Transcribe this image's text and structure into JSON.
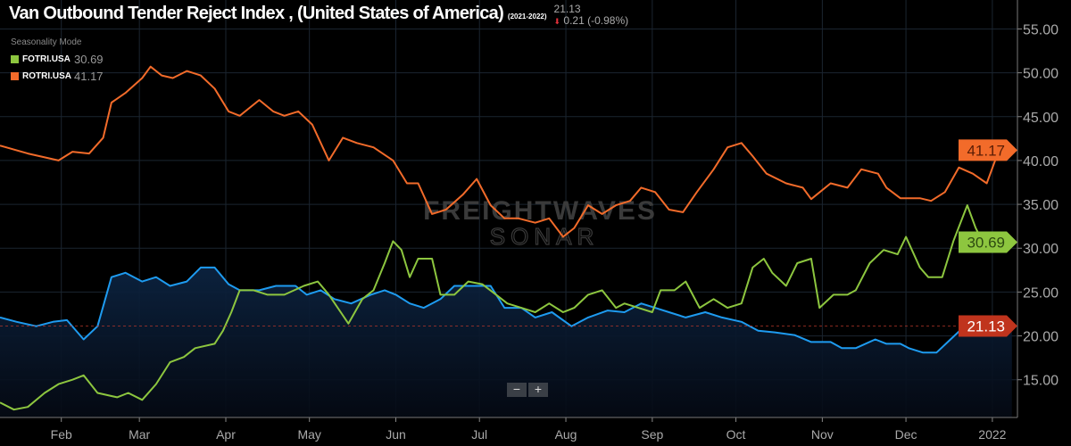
{
  "header": {
    "title": "Van Outbound Tender Reject Index , (United States of America)",
    "range": "(2021-2022)",
    "last_value": "21.13",
    "change": "0.21",
    "change_pct": "(-0.98%)"
  },
  "legend": {
    "mode": "Seasonality Mode",
    "items": [
      {
        "name": "FOTRI.USA",
        "value": "30.69",
        "color": "#8dc63f"
      },
      {
        "name": "ROTRI.USA",
        "value": "41.17",
        "color": "#f26b2a"
      }
    ]
  },
  "watermark": {
    "line1": "FREIGHTWAVES",
    "line2": "SONAR"
  },
  "zoom_controls": {
    "minus": "−",
    "plus": "+"
  },
  "chart_data": {
    "type": "line",
    "title": "Van Outbound Tender Reject Index , (United States of America)",
    "xlabel": "",
    "ylabel": "",
    "ylim": [
      10.7,
      58.3
    ],
    "xlim_day_of_year": [
      10,
      375
    ],
    "grid": true,
    "y_ticks": [
      "15.00",
      "20.00",
      "25.00",
      "30.00",
      "35.00",
      "40.00",
      "45.00",
      "50.00",
      "55.00"
    ],
    "x_ticks": [
      {
        "label": "Feb",
        "day": 32
      },
      {
        "label": "Mar",
        "day": 60
      },
      {
        "label": "Apr",
        "day": 91
      },
      {
        "label": "May",
        "day": 121
      },
      {
        "label": "Jun",
        "day": 152
      },
      {
        "label": "Jul",
        "day": 182
      },
      {
        "label": "Aug",
        "day": 213
      },
      {
        "label": "Sep",
        "day": 244
      },
      {
        "label": "Oct",
        "day": 274
      },
      {
        "label": "Nov",
        "day": 305
      },
      {
        "label": "Dec",
        "day": 335
      },
      {
        "label": "2022",
        "day": 366
      }
    ],
    "series": [
      {
        "name": "ROTRI.USA",
        "color": "#f26b2a",
        "last": "41.17",
        "x": [
          10,
          20,
          31,
          36,
          42,
          47,
          50,
          55,
          61,
          64,
          68,
          72,
          77,
          82,
          87,
          92,
          96,
          103,
          108,
          112,
          117,
          122,
          128,
          133,
          138,
          144,
          151,
          156,
          160,
          165,
          170,
          176,
          181,
          186,
          191,
          196,
          202,
          207,
          212,
          216,
          221,
          226,
          231,
          236,
          240,
          245,
          250,
          255,
          260,
          266,
          271,
          276,
          280,
          285,
          292,
          298,
          301,
          308,
          314,
          319,
          325,
          328,
          333,
          340,
          344,
          349,
          354,
          359,
          364,
          367,
          370,
          373
        ],
        "y": [
          41.7,
          40.8,
          40.0,
          41.0,
          40.8,
          42.6,
          46.6,
          47.7,
          49.4,
          50.7,
          49.7,
          49.4,
          50.2,
          49.7,
          48.2,
          45.6,
          45.1,
          46.9,
          45.6,
          45.1,
          45.6,
          44.1,
          40.0,
          42.6,
          42.0,
          41.5,
          40.0,
          37.4,
          37.4,
          33.9,
          34.4,
          36.1,
          37.9,
          34.9,
          33.4,
          33.4,
          32.9,
          33.4,
          31.3,
          32.3,
          34.9,
          33.9,
          34.9,
          35.4,
          36.9,
          36.4,
          34.4,
          34.1,
          36.4,
          39.0,
          41.5,
          42.0,
          40.5,
          38.5,
          37.4,
          36.9,
          35.6,
          37.4,
          36.9,
          39.0,
          38.5,
          36.9,
          35.7,
          35.7,
          35.4,
          36.4,
          39.2,
          38.5,
          37.4,
          40.0,
          41.5,
          41.17
        ]
      },
      {
        "name": "FOTRI.USA",
        "color": "#8dc63f",
        "last": "30.69",
        "x": [
          10,
          15,
          20,
          26,
          31,
          36,
          40,
          45,
          52,
          56,
          61,
          66,
          71,
          76,
          80,
          87,
          90,
          93,
          96,
          101,
          106,
          112,
          119,
          124,
          128,
          135,
          140,
          144,
          148,
          151,
          154,
          157,
          160,
          165,
          168,
          173,
          178,
          183,
          188,
          192,
          197,
          202,
          207,
          212,
          216,
          221,
          226,
          231,
          234,
          239,
          244,
          247,
          252,
          256,
          261,
          266,
          271,
          276,
          280,
          284,
          287,
          292,
          296,
          301,
          304,
          309,
          314,
          317,
          322,
          327,
          332,
          335,
          340,
          343,
          348,
          352,
          357,
          360,
          364,
          367,
          370,
          373
        ],
        "y": [
          12.4,
          11.6,
          11.9,
          13.5,
          14.5,
          15.0,
          15.5,
          13.5,
          13.0,
          13.5,
          12.7,
          14.5,
          17.0,
          17.6,
          18.6,
          19.1,
          20.6,
          22.7,
          25.2,
          25.2,
          24.7,
          24.7,
          25.7,
          26.2,
          24.7,
          21.4,
          24.2,
          25.2,
          28.3,
          30.8,
          29.8,
          26.7,
          28.8,
          28.8,
          24.7,
          24.7,
          26.2,
          25.9,
          24.7,
          23.7,
          23.2,
          22.7,
          23.7,
          22.7,
          23.2,
          24.7,
          25.2,
          23.2,
          23.7,
          23.2,
          22.7,
          25.2,
          25.2,
          26.2,
          23.2,
          24.2,
          23.2,
          23.7,
          27.8,
          28.8,
          27.2,
          25.7,
          28.3,
          28.8,
          23.2,
          24.7,
          24.7,
          25.2,
          28.3,
          29.8,
          29.3,
          31.3,
          27.8,
          26.7,
          26.7,
          30.8,
          34.9,
          32.3,
          29.8,
          30.8,
          30.8,
          30.69
        ]
      },
      {
        "name": "Van Outbound Tender Reject Index",
        "color": "#1e9bf0",
        "last": "21.13",
        "area": true,
        "x": [
          10,
          16,
          23,
          29,
          34,
          40,
          45,
          50,
          55,
          61,
          66,
          71,
          77,
          82,
          87,
          92,
          96,
          103,
          109,
          116,
          120,
          125,
          130,
          136,
          143,
          148,
          152,
          157,
          162,
          168,
          173,
          180,
          186,
          191,
          197,
          202,
          208,
          215,
          221,
          228,
          234,
          240,
          245,
          250,
          256,
          263,
          269,
          276,
          282,
          288,
          295,
          301,
          308,
          312,
          317,
          324,
          328,
          333,
          336,
          341,
          346,
          351,
          356,
          360,
          365,
          370,
          373
        ],
        "y": [
          22.1,
          21.6,
          21.1,
          21.6,
          21.8,
          19.6,
          21.1,
          26.7,
          27.2,
          26.2,
          26.7,
          25.7,
          26.2,
          27.8,
          27.8,
          25.9,
          25.2,
          25.2,
          25.7,
          25.7,
          24.7,
          25.2,
          24.2,
          23.7,
          24.7,
          25.2,
          24.7,
          23.7,
          23.2,
          24.2,
          25.7,
          25.7,
          25.7,
          23.2,
          23.2,
          22.1,
          22.7,
          21.1,
          22.1,
          22.9,
          22.7,
          23.7,
          23.2,
          22.7,
          22.1,
          22.7,
          22.1,
          21.6,
          20.6,
          20.4,
          20.1,
          19.3,
          19.3,
          18.6,
          18.6,
          19.6,
          19.1,
          19.1,
          18.6,
          18.1,
          18.1,
          19.6,
          21.1,
          21.6,
          22.1,
          21.1,
          21.13
        ]
      }
    ]
  }
}
